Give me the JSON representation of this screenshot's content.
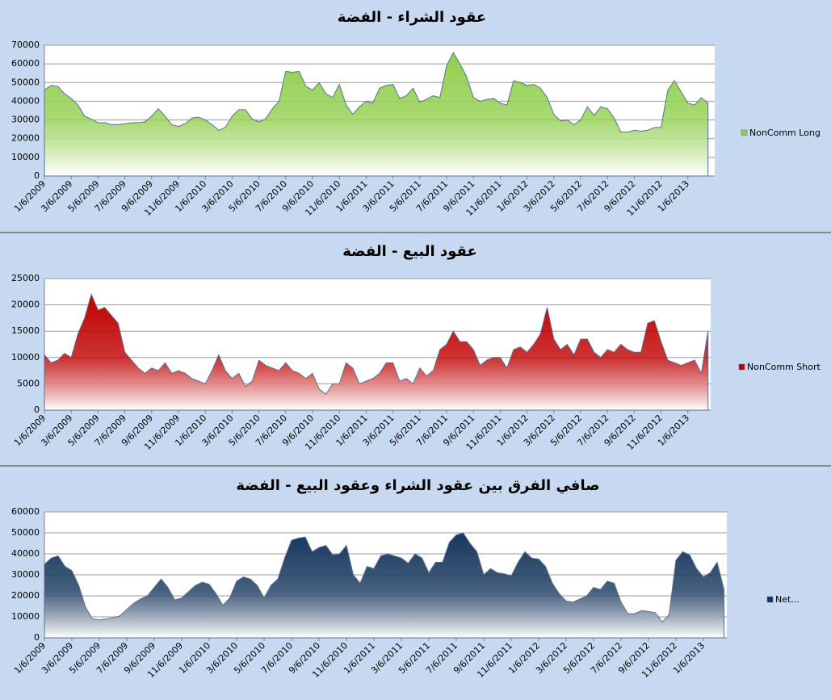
{
  "chart_data": [
    {
      "type": "area",
      "title": "عقود الشراء - الفضة",
      "categories": [
        "1/6/2009",
        null,
        null,
        null,
        "3/6/2009",
        null,
        null,
        null,
        "5/6/2009",
        null,
        null,
        null,
        "7/6/2009",
        null,
        null,
        null,
        "9/6/2009",
        null,
        null,
        null,
        "11/6/2009",
        null,
        null,
        null,
        "1/6/2010",
        null,
        null,
        null,
        "3/6/2010",
        null,
        null,
        null,
        "5/6/2010",
        null,
        null,
        null,
        "7/6/2010",
        null,
        null,
        null,
        "9/6/2010",
        null,
        null,
        null,
        "11/6/2010",
        null,
        null,
        null,
        "1/6/2011",
        null,
        null,
        null,
        "3/6/2011",
        null,
        null,
        null,
        "5/6/2011",
        null,
        null,
        null,
        "7/6/2011",
        null,
        null,
        null,
        "9/6/2011",
        null,
        null,
        null,
        "11/6/2011",
        null,
        null,
        null,
        "1/6/2012",
        null,
        null,
        null,
        "3/6/2012",
        null,
        null,
        null,
        "5/6/2012",
        null,
        null,
        null,
        "7/6/2012",
        null,
        null,
        null,
        "9/6/2012",
        null,
        null,
        null,
        "11/6/2012",
        null,
        null,
        null,
        "1/6/2013",
        null,
        null,
        null
      ],
      "series": [
        {
          "name": "NonComm Long",
          "color": "#92d050",
          "values": [
            46000,
            48500,
            48000,
            44000,
            41500,
            38000,
            32000,
            30500,
            28500,
            28500,
            27500,
            27500,
            28000,
            28500,
            28500,
            29000,
            32000,
            36000,
            32000,
            27500,
            26500,
            28000,
            31000,
            31500,
            30000,
            27500,
            24500,
            26000,
            32000,
            35500,
            35500,
            30500,
            29000,
            30500,
            36000,
            40000,
            56000,
            55500,
            56000,
            48000,
            46000,
            50000,
            44000,
            42000,
            49000,
            38000,
            33000,
            37000,
            40000,
            39000,
            47000,
            48500,
            49000,
            41500,
            43000,
            47000,
            39500,
            41000,
            43000,
            42000,
            59000,
            66000,
            60000,
            53000,
            42000,
            40000,
            41000,
            41500,
            39000,
            38000,
            51000,
            50000,
            48500,
            49000,
            47000,
            42000,
            33000,
            29500,
            30000,
            27500,
            30000,
            37000,
            32500,
            37000,
            36000,
            31000,
            23500,
            23500,
            24500,
            24000,
            24500,
            26000,
            26000,
            46000,
            51000,
            45000,
            39000,
            38000,
            42000,
            39000
          ]
        }
      ],
      "ylim": [
        0,
        70000
      ],
      "yticks": [
        0,
        10000,
        20000,
        30000,
        40000,
        50000,
        60000,
        70000
      ],
      "grid": true,
      "legend": "right"
    },
    {
      "type": "area",
      "title": "عقود البيع - الفضة",
      "categories": [
        "1/6/2009",
        null,
        null,
        null,
        "3/6/2009",
        null,
        null,
        null,
        "5/6/2009",
        null,
        null,
        null,
        "7/6/2009",
        null,
        null,
        null,
        "9/6/2009",
        null,
        null,
        null,
        "11/6/2009",
        null,
        null,
        null,
        "1/6/2010",
        null,
        null,
        null,
        "3/6/2010",
        null,
        null,
        null,
        "5/6/2010",
        null,
        null,
        null,
        "7/6/2010",
        null,
        null,
        null,
        "9/6/2010",
        null,
        null,
        null,
        "11/6/2010",
        null,
        null,
        null,
        "1/6/2011",
        null,
        null,
        null,
        "3/6/2011",
        null,
        null,
        null,
        "5/6/2011",
        null,
        null,
        null,
        "7/6/2011",
        null,
        null,
        null,
        "9/6/2011",
        null,
        null,
        null,
        "11/6/2011",
        null,
        null,
        null,
        "1/6/2012",
        null,
        null,
        null,
        "3/6/2012",
        null,
        null,
        null,
        "5/6/2012",
        null,
        null,
        null,
        "7/6/2012",
        null,
        null,
        null,
        "9/6/2012",
        null,
        null,
        null,
        "11/6/2012",
        null,
        null,
        null,
        "1/6/2013",
        null,
        null,
        null
      ],
      "series": [
        {
          "name": "NonComm Short",
          "color": "#c00000",
          "values": [
            10500,
            9000,
            9500,
            10800,
            10000,
            14500,
            17500,
            22000,
            19000,
            19500,
            18000,
            16500,
            11000,
            9500,
            8000,
            7000,
            8000,
            7500,
            9000,
            7000,
            7500,
            7000,
            6000,
            5500,
            5000,
            7500,
            10500,
            7500,
            6000,
            7000,
            4500,
            5500,
            9500,
            8500,
            8000,
            7500,
            9000,
            7500,
            7000,
            6000,
            7000,
            4000,
            3000,
            5000,
            5000,
            9000,
            8000,
            5000,
            5500,
            6000,
            7000,
            9000,
            9000,
            5500,
            6000,
            5000,
            8000,
            6500,
            7500,
            11500,
            12500,
            15000,
            13000,
            13000,
            11500,
            8500,
            9500,
            10000,
            10000,
            8000,
            11500,
            12000,
            11000,
            12500,
            14500,
            19500,
            13500,
            11500,
            12500,
            10500,
            13500,
            13500,
            11000,
            10000,
            11500,
            11000,
            12500,
            11500,
            11000,
            11000,
            16500,
            17000,
            13000,
            9500,
            9000,
            8500,
            9000,
            9500,
            7000,
            15000
          ]
        }
      ],
      "ylim": [
        0,
        25000
      ],
      "yticks": [
        0,
        5000,
        10000,
        15000,
        20000,
        25000
      ],
      "grid": true,
      "legend": "right"
    },
    {
      "type": "area",
      "title": "صافي الفرق بين عقود الشراء وعقود البيع - الفضة",
      "categories": [
        "1/6/2009",
        null,
        null,
        null,
        "3/6/2009",
        null,
        null,
        null,
        "5/6/2009",
        null,
        null,
        null,
        "7/6/2009",
        null,
        null,
        null,
        "9/6/2009",
        null,
        null,
        null,
        "11/6/2009",
        null,
        null,
        null,
        "1/6/2010",
        null,
        null,
        null,
        "3/6/2010",
        null,
        null,
        null,
        "5/6/2010",
        null,
        null,
        null,
        "7/6/2010",
        null,
        null,
        null,
        "9/6/2010",
        null,
        null,
        null,
        "11/6/2010",
        null,
        null,
        null,
        "1/6/2011",
        null,
        null,
        null,
        "3/6/2011",
        null,
        null,
        null,
        "5/6/2011",
        null,
        null,
        null,
        "7/6/2011",
        null,
        null,
        null,
        "9/6/2011",
        null,
        null,
        null,
        "11/6/2011",
        null,
        null,
        null,
        "1/6/2012",
        null,
        null,
        null,
        "3/6/2012",
        null,
        null,
        null,
        "5/6/2012",
        null,
        null,
        null,
        "7/6/2012",
        null,
        null,
        null,
        "9/6/2012",
        null,
        null,
        null,
        "11/6/2012",
        null,
        null,
        null,
        "1/6/2013",
        null,
        null,
        null
      ],
      "series": [
        {
          "name": "Net...",
          "color": "#17375e",
          "values": [
            35000,
            38000,
            39000,
            34000,
            32000,
            25000,
            14500,
            9000,
            8500,
            9000,
            9500,
            10500,
            13500,
            16500,
            18500,
            20000,
            24000,
            28000,
            24000,
            18000,
            19000,
            22000,
            25000,
            26500,
            25500,
            21000,
            15500,
            19000,
            27000,
            29000,
            28000,
            25000,
            19000,
            25000,
            28000,
            38000,
            46500,
            47500,
            48000,
            41000,
            43000,
            44000,
            39500,
            40000,
            44000,
            30000,
            26000,
            34000,
            33000,
            39000,
            40000,
            39000,
            38000,
            35500,
            40000,
            38000,
            31000,
            36000,
            36000,
            45500,
            49000,
            50000,
            45000,
            41000,
            30000,
            33000,
            31000,
            30500,
            29500,
            36000,
            41000,
            38000,
            37500,
            34000,
            26000,
            21000,
            17500,
            17000,
            18500,
            20000,
            24000,
            23000,
            27000,
            26000,
            17000,
            11500,
            11500,
            13000,
            12500,
            12000,
            7500,
            11000,
            37000,
            41000,
            39500,
            33000,
            29000,
            31000,
            36000,
            23000
          ]
        }
      ],
      "ylim": [
        0,
        60000
      ],
      "yticks": [
        0,
        10000,
        20000,
        30000,
        40000,
        50000,
        60000
      ],
      "grid": true,
      "legend": "right"
    }
  ]
}
